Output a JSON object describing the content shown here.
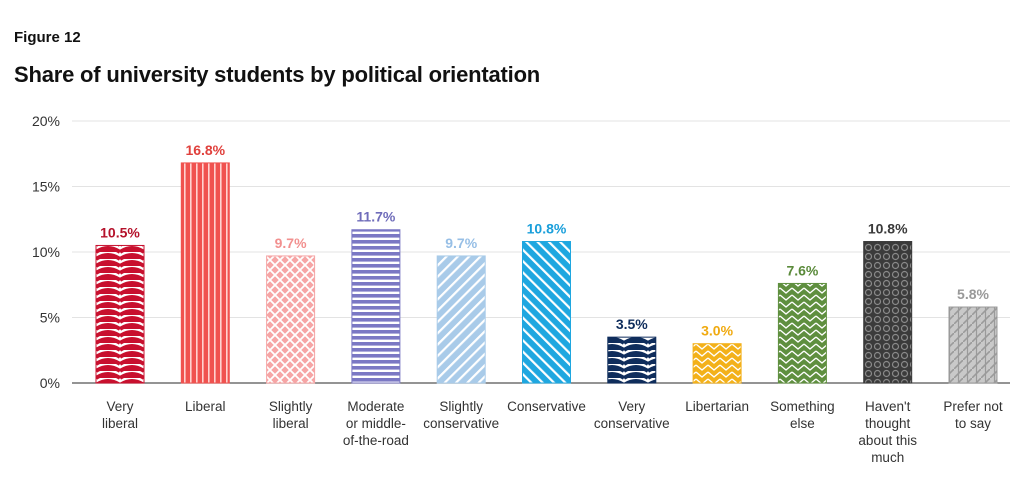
{
  "figure_label": "Figure 12",
  "chart_data": {
    "type": "bar",
    "title": "Share of university students by political orientation",
    "xlabel": "",
    "ylabel": "",
    "ylim": [
      0,
      20
    ],
    "yticks": [
      0,
      5,
      10,
      15,
      20
    ],
    "ytick_labels": [
      "0%",
      "5%",
      "10%",
      "15%",
      "20%"
    ],
    "grid": true,
    "categories": [
      [
        "Very",
        "liberal"
      ],
      [
        "Liberal"
      ],
      [
        "Slightly",
        "liberal"
      ],
      [
        "Moderate",
        "or middle-",
        "of-the-road"
      ],
      [
        "Slightly",
        "conservative"
      ],
      [
        "Conservative"
      ],
      [
        "Very",
        "conservative"
      ],
      [
        "Libertarian"
      ],
      [
        "Something",
        "else"
      ],
      [
        "Haven't",
        "thought",
        "about this",
        "much"
      ],
      [
        "Prefer not",
        "to say"
      ]
    ],
    "values": [
      10.5,
      16.8,
      9.7,
      11.7,
      9.7,
      10.8,
      3.5,
      3.0,
      7.6,
      10.8,
      5.8
    ],
    "value_labels": [
      "10.5%",
      "16.8%",
      "9.7%",
      "11.7%",
      "9.7%",
      "10.8%",
      "3.5%",
      "3.0%",
      "7.6%",
      "10.8%",
      "5.8%"
    ],
    "colors": [
      "#c8102e",
      "#f0524f",
      "#f6a5a5",
      "#7b78c4",
      "#a9cbe9",
      "#1fa7e0",
      "#0f2d5c",
      "#f3b11a",
      "#5f8f3f",
      "#3b3b3b",
      "#9a9a9a"
    ],
    "label_colors": [
      "#b5122b",
      "#e0403c",
      "#f2908f",
      "#6f6cba",
      "#97bfe6",
      "#1a9fdb",
      "#0f2d5c",
      "#f0aa10",
      "#5a8a3a",
      "#3a3a3a",
      "#999999"
    ],
    "patterns": [
      "arcs",
      "vstripes",
      "diamonds",
      "hstripes",
      "diag-left",
      "diag-right",
      "arcs",
      "chevrons",
      "chevrons",
      "dots",
      "hatch-cross"
    ]
  }
}
